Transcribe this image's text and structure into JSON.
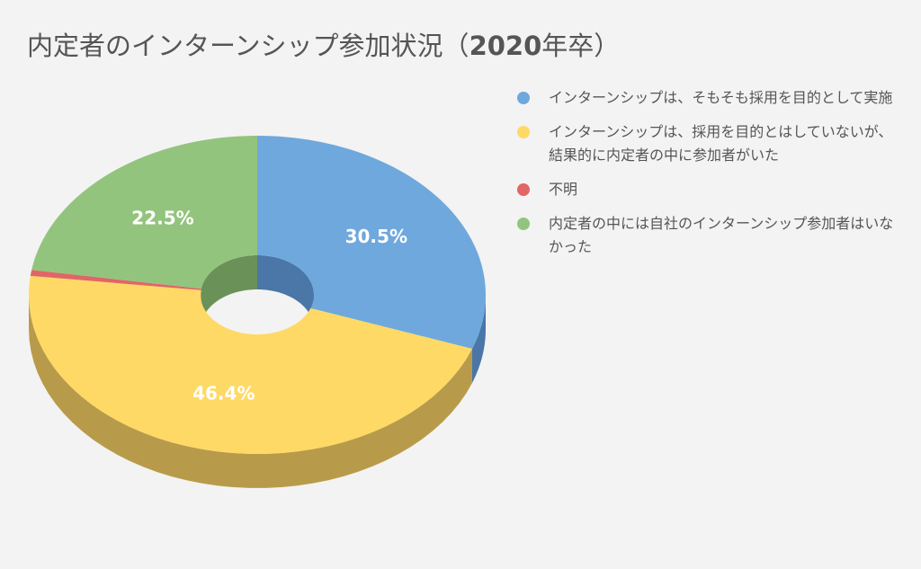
{
  "chart_data": {
    "type": "pie",
    "title_main": "内定者のインターンシップ参加状況（",
    "title_year": "2020",
    "title_suffix": "年卒）",
    "slices": [
      {
        "label": "インターンシップは、そもそも採用を目的として実施",
        "value": 30.5,
        "value_label": "30.5%",
        "color": "#6fa8dc",
        "side_color": "#4a76a8"
      },
      {
        "label": "インターンシップは、採用を目的とはしていないが、結果的に内定者の中に参加者がいた",
        "value": 46.4,
        "value_label": "46.4%",
        "color": "#ffd966",
        "side_color": "#b89b4a"
      },
      {
        "label": "不明",
        "value": 0.6,
        "value_label": "",
        "color": "#e06666",
        "side_color": "#a84848"
      },
      {
        "label": "内定者の中には自社のインターンシップ参加者はいなかった",
        "value": 22.5,
        "value_label": "22.5%",
        "color": "#93c47d",
        "side_color": "#6a9158"
      }
    ],
    "donut": true,
    "style": "3d",
    "legend_position": "right"
  }
}
